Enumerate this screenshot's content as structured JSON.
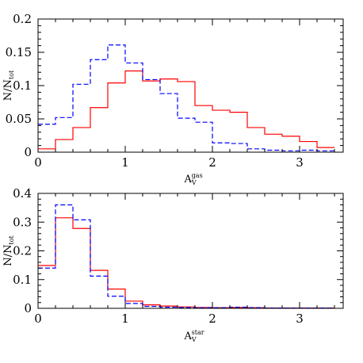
{
  "chart_data": [
    {
      "type": "step",
      "ylabel": "N/N",
      "ylabel_sub": "tot",
      "xlabel": "A",
      "xlabel_sub": "V",
      "xlabel_sup": "gas",
      "xlim": [
        0,
        3.5
      ],
      "ylim": [
        0,
        0.2
      ],
      "xticks": [
        0,
        1,
        2,
        3
      ],
      "xtick_labels": [
        "0",
        "1",
        "2",
        "3"
      ],
      "yticks": [
        0,
        0.05,
        0.1,
        0.15,
        0.2
      ],
      "ytick_labels": [
        "0",
        "0.05",
        "0.1",
        "0.15",
        "0.2"
      ],
      "bin_edges": [
        0,
        0.2,
        0.4,
        0.6,
        0.8,
        1.0,
        1.2,
        1.4,
        1.6,
        1.8,
        2.0,
        2.2,
        2.4,
        2.6,
        2.8,
        3.0,
        3.2,
        3.4
      ],
      "series": [
        {
          "color": "#ff0000",
          "style": "solid",
          "values": [
            0.005,
            0.019,
            0.037,
            0.067,
            0.104,
            0.122,
            0.107,
            0.11,
            0.106,
            0.07,
            0.063,
            0.06,
            0.037,
            0.027,
            0.024,
            0.016,
            0.007
          ]
        },
        {
          "color": "#0000ff",
          "style": "dashed",
          "values": [
            0.042,
            0.052,
            0.102,
            0.139,
            0.161,
            0.134,
            0.109,
            0.088,
            0.051,
            0.045,
            0.014,
            0.013,
            0.005,
            0.003,
            0.002,
            0.003,
            0.002
          ]
        }
      ]
    },
    {
      "type": "step",
      "ylabel": "N/N",
      "ylabel_sub": "tot",
      "xlabel": "A",
      "xlabel_sub": "V",
      "xlabel_sup": "star",
      "xlim": [
        0,
        3.5
      ],
      "ylim": [
        0,
        0.4
      ],
      "xticks": [
        0,
        1,
        2,
        3
      ],
      "xtick_labels": [
        "0",
        "1",
        "2",
        "3"
      ],
      "yticks": [
        0,
        0.1,
        0.2,
        0.3,
        0.4
      ],
      "ytick_labels": [
        "0",
        "0.1",
        "0.2",
        "0.3",
        "0.4"
      ],
      "bin_edges": [
        0,
        0.2,
        0.4,
        0.6,
        0.8,
        1.0,
        1.2,
        1.4,
        1.6,
        1.8,
        2.0,
        2.2,
        2.4,
        2.6,
        2.8,
        3.0,
        3.2,
        3.4
      ],
      "series": [
        {
          "color": "#ff0000",
          "style": "solid",
          "values": [
            0.149,
            0.315,
            0.278,
            0.132,
            0.067,
            0.025,
            0.012,
            0.008,
            0.005,
            0.003,
            0.002,
            0.003,
            0.002,
            0.001,
            0.001,
            0.001,
            0.001
          ]
        },
        {
          "color": "#0000ff",
          "style": "dashed",
          "values": [
            0.14,
            0.36,
            0.308,
            0.112,
            0.042,
            0.017,
            0.007,
            0.004,
            0.003,
            0.002,
            0.002,
            0.004,
            0.002,
            0.001,
            0.001,
            0.001,
            0.001
          ]
        }
      ]
    }
  ]
}
